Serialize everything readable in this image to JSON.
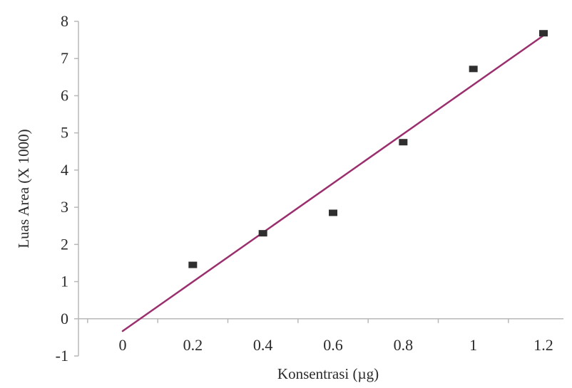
{
  "chart_data": {
    "type": "scatter",
    "title": "",
    "xlabel": "Konsentrasi (µg)",
    "ylabel": "Luas Area (X 1000)",
    "xlim": [
      0,
      1.2
    ],
    "ylim": [
      -1,
      8
    ],
    "x_ticks": [
      "0",
      "0.2",
      "0.4",
      "0.6",
      "0.8",
      "1",
      "1.2"
    ],
    "y_ticks": [
      "-1",
      "0",
      "1",
      "2",
      "3",
      "4",
      "5",
      "6",
      "7",
      "8"
    ],
    "series": [
      {
        "type": "scatter",
        "marker": "square",
        "color": "#2f2f2f",
        "points": [
          {
            "x": 0.2,
            "y": 1.45
          },
          {
            "x": 0.4,
            "y": 2.3
          },
          {
            "x": 0.6,
            "y": 2.85
          },
          {
            "x": 0.8,
            "y": 4.75
          },
          {
            "x": 1.0,
            "y": 6.72
          },
          {
            "x": 1.2,
            "y": 7.68
          }
        ]
      },
      {
        "type": "line",
        "color": "#9b2f6e",
        "points": [
          {
            "x": 0.0,
            "y": -0.33
          },
          {
            "x": 1.2,
            "y": 7.62
          }
        ]
      }
    ],
    "grid": false,
    "zero_line": true
  }
}
